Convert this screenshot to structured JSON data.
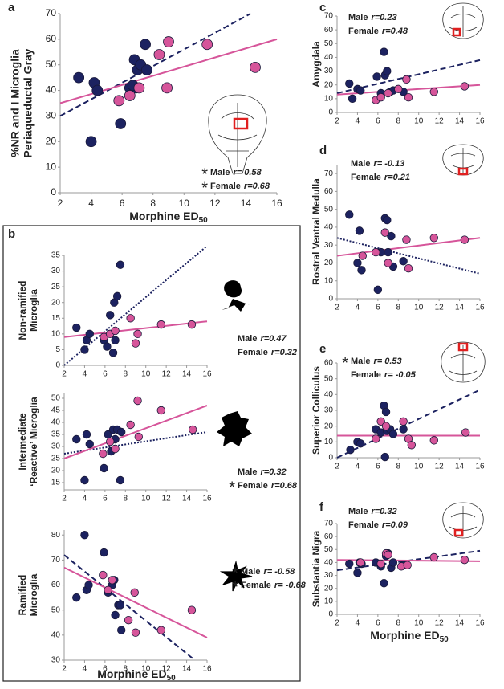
{
  "chart_data": [
    {
      "type": "scatter",
      "label": "a",
      "y_label": [
        "%NR and I Microglia",
        "Periaqueductal Gray"
      ],
      "x_label": "Morphine ED",
      "x_label_sub": "50",
      "xlim": [
        2,
        16
      ],
      "xticks": [
        2,
        4,
        6,
        8,
        10,
        12,
        14,
        16
      ],
      "ylim": [
        0,
        70
      ],
      "yticks": [
        0,
        10,
        20,
        30,
        40,
        50,
        60,
        70
      ],
      "series": [
        {
          "name": "Male",
          "color": "#1c2260",
          "line_style": "dashed",
          "r_label": "r= 0.58",
          "significance": "*",
          "x": [
            3.2,
            4.0,
            4.2,
            4.4,
            5.9,
            6.5,
            6.8,
            6.9,
            7.0,
            7.2,
            7.5,
            7.6,
            6.7
          ],
          "values": [
            45,
            20,
            43,
            40,
            27,
            41,
            52,
            41,
            48,
            50,
            58,
            48,
            42
          ],
          "trend_x": [
            2,
            14.3
          ],
          "trend_y": [
            30,
            70
          ]
        },
        {
          "name": "Female",
          "color": "#d6559a",
          "line_style": "solid",
          "r_label": "r=0.68",
          "significance": "*",
          "x": [
            5.8,
            6.5,
            7.1,
            8.4,
            8.9,
            9.0,
            11.5,
            14.6
          ],
          "values": [
            36,
            38,
            41,
            54,
            41,
            59,
            58,
            49
          ],
          "trend_x": [
            2,
            16
          ],
          "trend_y": [
            35,
            60
          ]
        }
      ]
    },
    {
      "type": "scatter",
      "label": "b",
      "y_label": [
        "Non-ramified",
        "Microglia"
      ],
      "xlim": [
        2,
        16
      ],
      "xticks": [
        2,
        4,
        6,
        8,
        10,
        12,
        14,
        16
      ],
      "ylim": [
        0,
        35
      ],
      "yticks": [
        0,
        5,
        10,
        15,
        20,
        25,
        30,
        35
      ],
      "series": [
        {
          "name": "Male",
          "color": "#1c2260",
          "line_style": "dotted",
          "r_label": "r=0.47",
          "x": [
            3.2,
            4.0,
            4.2,
            4.5,
            5.9,
            6.2,
            6.5,
            6.8,
            6.9,
            7.2,
            7.5,
            7.0
          ],
          "values": [
            12,
            5,
            8,
            10,
            8,
            6,
            16,
            4,
            20,
            22,
            32,
            8
          ],
          "trend_x": [
            2,
            16
          ],
          "trend_y": [
            0,
            38
          ]
        },
        {
          "name": "Female",
          "color": "#d6559a",
          "line_style": "solid",
          "r_label": "r=0.32",
          "x": [
            5.9,
            6.5,
            7.0,
            8.5,
            9.0,
            9.2,
            11.5,
            14.5
          ],
          "values": [
            9,
            10,
            11,
            15,
            7,
            10,
            13,
            13
          ],
          "trend_x": [
            2,
            16
          ],
          "trend_y": [
            9,
            14
          ]
        }
      ]
    },
    {
      "type": "scatter",
      "y_label": [
        "Intermediate",
        "‘Reactive’ Microglia"
      ],
      "xlim": [
        2,
        16
      ],
      "xticks": [
        2,
        4,
        6,
        8,
        10,
        12,
        14,
        16
      ],
      "ylim": [
        12,
        52
      ],
      "yticks": [
        15,
        20,
        25,
        30,
        35,
        40,
        45,
        50
      ],
      "series": [
        {
          "name": "Male",
          "color": "#1c2260",
          "line_style": "dotted",
          "r_label": "r=0.32",
          "x": [
            3.2,
            4.0,
            4.2,
            4.5,
            5.9,
            6.3,
            6.8,
            7.0,
            7.2,
            7.5,
            7.6,
            6.6
          ],
          "values": [
            33,
            16,
            35,
            31,
            21,
            35,
            37,
            33,
            37,
            16,
            36,
            28
          ],
          "trend_x": [
            2,
            16
          ],
          "trend_y": [
            27,
            36
          ]
        },
        {
          "name": "Female",
          "color": "#d6559a",
          "line_style": "solid",
          "r_label": "r=0.68",
          "significance": "*",
          "x": [
            5.8,
            6.5,
            7.0,
            8.5,
            9.2,
            9.3,
            11.5,
            14.6
          ],
          "values": [
            27,
            32,
            29,
            39,
            49,
            34,
            45,
            37
          ],
          "trend_x": [
            2,
            16
          ],
          "trend_y": [
            25,
            47
          ]
        }
      ]
    },
    {
      "type": "scatter",
      "y_label": [
        "Ramified",
        "Microglia"
      ],
      "x_label": "Morphine ED",
      "x_label_sub": "50",
      "xlim": [
        2,
        16
      ],
      "xticks": [
        2,
        4,
        6,
        8,
        10,
        12,
        14,
        16
      ],
      "ylim": [
        30,
        82
      ],
      "yticks": [
        30,
        40,
        50,
        60,
        70,
        80
      ],
      "series": [
        {
          "name": "Male",
          "color": "#1c2260",
          "line_style": "dashed",
          "r_label": "r= -0.58",
          "significance": "*",
          "x": [
            3.2,
            4.0,
            4.2,
            4.4,
            5.9,
            6.3,
            6.7,
            6.9,
            7.0,
            7.3,
            7.5,
            7.6
          ],
          "values": [
            55,
            80,
            58,
            60,
            73,
            57,
            60,
            62,
            48,
            52,
            52,
            42
          ],
          "trend_x": [
            2,
            14.8
          ],
          "trend_y": [
            72,
            30
          ]
        },
        {
          "name": "Female",
          "color": "#d6559a",
          "line_style": "solid",
          "r_label": "r= -0.68",
          "significance": "*",
          "x": [
            5.8,
            6.3,
            6.7,
            8.3,
            8.9,
            9.0,
            11.5,
            14.5
          ],
          "values": [
            64,
            58,
            62,
            46,
            57,
            41,
            42,
            50
          ],
          "trend_x": [
            2,
            16
          ],
          "trend_y": [
            67,
            39
          ]
        }
      ]
    },
    {
      "type": "scatter",
      "label": "c",
      "y_label": [
        "Amygdala"
      ],
      "xlim": [
        2,
        16
      ],
      "xticks": [
        2,
        4,
        6,
        8,
        10,
        12,
        14,
        16
      ],
      "ylim": [
        0,
        70
      ],
      "yticks": [
        0,
        10,
        20,
        30,
        40,
        50,
        60,
        70
      ],
      "series": [
        {
          "name": "Male",
          "color": "#1c2260",
          "line_style": "dashed",
          "r_label": "r=0.23",
          "x": [
            3.2,
            3.5,
            4.0,
            4.3,
            5.9,
            6.3,
            6.6,
            6.7,
            6.9,
            7.2,
            7.5,
            8.5
          ],
          "values": [
            21,
            10,
            17,
            16,
            26,
            14,
            44,
            27,
            30,
            15,
            16,
            15
          ],
          "trend_x": [
            2,
            16
          ],
          "trend_y": [
            14,
            38
          ]
        },
        {
          "name": "Female",
          "color": "#d6559a",
          "line_style": "solid",
          "r_label": "r=0.48",
          "x": [
            5.8,
            6.3,
            7.0,
            8.8,
            9.0,
            11.5,
            14.5,
            8.0
          ],
          "values": [
            9,
            11,
            14,
            24,
            11,
            15,
            19,
            17
          ],
          "trend_x": [
            2,
            16
          ],
          "trend_y": [
            13,
            20
          ]
        }
      ]
    },
    {
      "type": "scatter",
      "label": "d",
      "y_label": [
        "Rostral Ventral Medulla"
      ],
      "xlim": [
        2,
        16
      ],
      "xticks": [
        2,
        4,
        6,
        8,
        10,
        12,
        14,
        16
      ],
      "ylim": [
        0,
        75
      ],
      "yticks": [
        0,
        10,
        20,
        30,
        40,
        50,
        60,
        70
      ],
      "series": [
        {
          "name": "Male",
          "color": "#1c2260",
          "line_style": "dotted",
          "r_label": "r= -0.13",
          "x": [
            3.2,
            4.0,
            4.2,
            4.4,
            6.0,
            6.3,
            6.7,
            6.9,
            7.0,
            7.3,
            7.5,
            8.5
          ],
          "values": [
            47,
            20,
            38,
            16,
            5,
            26,
            45,
            44,
            26,
            35,
            18,
            21
          ],
          "trend_x": [
            2,
            16
          ],
          "trend_y": [
            34,
            14
          ]
        },
        {
          "name": "Female",
          "color": "#d6559a",
          "line_style": "solid",
          "r_label": "r=0.21",
          "x": [
            5.8,
            6.7,
            7.0,
            8.8,
            9.0,
            11.5,
            14.5,
            4.5
          ],
          "values": [
            26,
            37,
            20,
            33,
            17,
            34,
            33,
            24
          ],
          "trend_x": [
            2,
            16
          ],
          "trend_y": [
            24,
            34
          ]
        }
      ]
    },
    {
      "type": "scatter",
      "label": "e",
      "y_label": [
        "Superior Colliculus"
      ],
      "xlim": [
        2,
        16
      ],
      "xticks": [
        2,
        4,
        6,
        8,
        10,
        12,
        14,
        16
      ],
      "ylim": [
        0,
        60
      ],
      "yticks": [
        0,
        10,
        20,
        30,
        40,
        50,
        60
      ],
      "series": [
        {
          "name": "Male",
          "color": "#1c2260",
          "line_style": "dashed",
          "r_label": "r= 0.53",
          "significance": "*",
          "x": [
            3.3,
            4.0,
            4.3,
            5.8,
            6.3,
            6.6,
            6.8,
            6.9,
            7.2,
            7.5,
            6.7,
            8.5
          ],
          "values": [
            5,
            10,
            9,
            18,
            16,
            33,
            29,
            17,
            18,
            15,
            0.5,
            18
          ],
          "trend_x": [
            2,
            16
          ],
          "trend_y": [
            0,
            43
          ]
        },
        {
          "name": "Female",
          "color": "#d6559a",
          "line_style": "solid",
          "r_label": "r= -0.05",
          "x": [
            5.8,
            6.3,
            6.8,
            8.5,
            9.0,
            9.3,
            11.5,
            14.6
          ],
          "values": [
            12,
            23,
            20,
            23,
            12,
            8,
            11,
            16
          ],
          "trend_x": [
            2,
            16
          ],
          "trend_y": [
            14,
            14
          ]
        }
      ]
    },
    {
      "type": "scatter",
      "label": "f",
      "y_label": [
        "Substantia Nigra"
      ],
      "x_label": "Morphine ED",
      "x_label_sub": "50",
      "xlim": [
        2,
        16
      ],
      "xticks": [
        2,
        4,
        6,
        8,
        10,
        12,
        14,
        16
      ],
      "ylim": [
        0,
        70
      ],
      "yticks": [
        0,
        10,
        20,
        30,
        40,
        50,
        60,
        70
      ],
      "series": [
        {
          "name": "Male",
          "color": "#1c2260",
          "line_style": "dashed",
          "r_label": "r=0.32",
          "x": [
            3.2,
            4.0,
            4.2,
            5.8,
            6.3,
            6.6,
            6.8,
            7.0,
            7.3,
            7.5,
            8.5,
            4.4
          ],
          "values": [
            39,
            32,
            40,
            40,
            37,
            24,
            45,
            47,
            36,
            40,
            38,
            39
          ],
          "trend_x": [
            2,
            16
          ],
          "trend_y": [
            34,
            49
          ]
        },
        {
          "name": "Female",
          "color": "#d6559a",
          "line_style": "solid",
          "r_label": "r=0.09",
          "x": [
            4.3,
            6.3,
            6.8,
            8.3,
            8.9,
            11.5,
            14.5,
            7.0
          ],
          "values": [
            40,
            39,
            47,
            37,
            38,
            44,
            42,
            46
          ],
          "trend_x": [
            2,
            16
          ],
          "trend_y": [
            42,
            41
          ]
        }
      ]
    }
  ]
}
